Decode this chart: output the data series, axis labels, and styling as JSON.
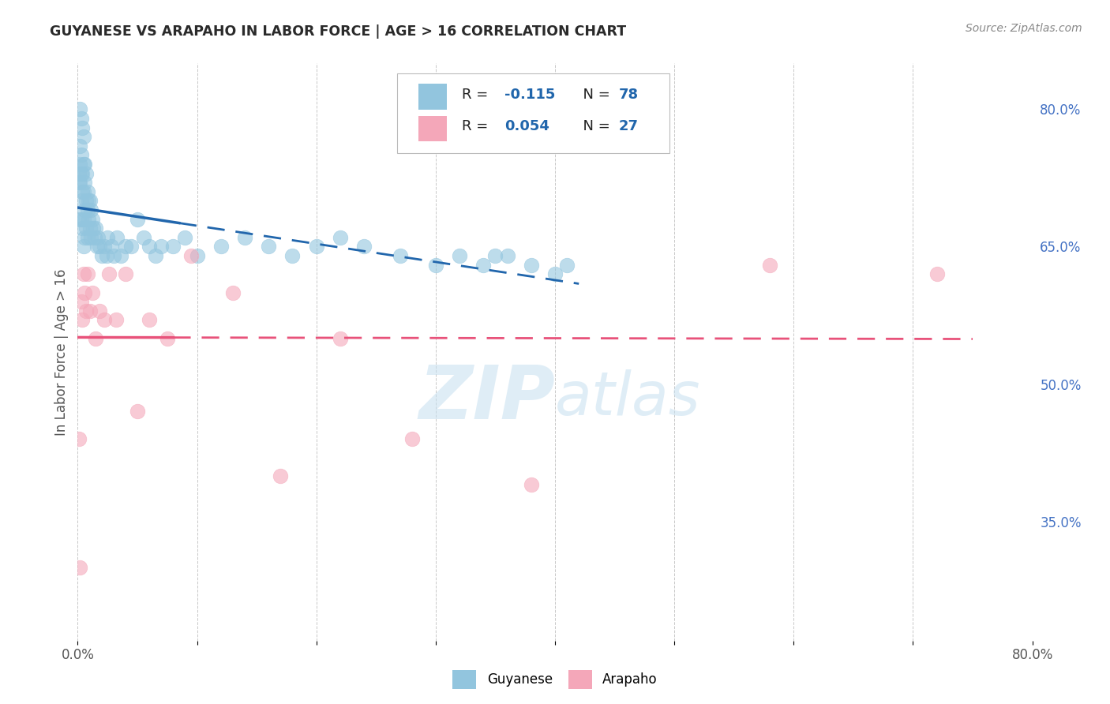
{
  "title": "GUYANESE VS ARAPAHO IN LABOR FORCE | AGE > 16 CORRELATION CHART",
  "source": "Source: ZipAtlas.com",
  "ylabel": "In Labor Force | Age > 16",
  "xlim": [
    0.0,
    0.8
  ],
  "ylim": [
    0.22,
    0.85
  ],
  "y_ticks_right": [
    0.35,
    0.5,
    0.65,
    0.8
  ],
  "y_tick_labels_right": [
    "35.0%",
    "50.0%",
    "65.0%",
    "80.0%"
  ],
  "blue_color": "#92C5DE",
  "pink_color": "#F4A7B9",
  "blue_line_color": "#2166AC",
  "pink_line_color": "#E8527A",
  "watermark_zip": "ZIP",
  "watermark_atlas": "atlas",
  "background_color": "#ffffff",
  "blue_scatter_x": [
    0.001,
    0.001,
    0.001,
    0.002,
    0.002,
    0.002,
    0.002,
    0.003,
    0.003,
    0.003,
    0.003,
    0.003,
    0.004,
    0.004,
    0.004,
    0.004,
    0.005,
    0.005,
    0.005,
    0.005,
    0.005,
    0.006,
    0.006,
    0.006,
    0.006,
    0.007,
    0.007,
    0.007,
    0.008,
    0.008,
    0.008,
    0.009,
    0.009,
    0.01,
    0.01,
    0.011,
    0.011,
    0.012,
    0.013,
    0.014,
    0.015,
    0.016,
    0.017,
    0.018,
    0.02,
    0.022,
    0.024,
    0.025,
    0.028,
    0.03,
    0.033,
    0.036,
    0.04,
    0.045,
    0.05,
    0.055,
    0.06,
    0.065,
    0.07,
    0.08,
    0.09,
    0.1,
    0.12,
    0.14,
    0.16,
    0.18,
    0.2,
    0.22,
    0.24,
    0.27,
    0.3,
    0.32,
    0.34,
    0.36,
    0.38,
    0.4,
    0.41,
    0.35
  ],
  "blue_scatter_y": [
    0.72,
    0.73,
    0.68,
    0.8,
    0.76,
    0.74,
    0.72,
    0.79,
    0.75,
    0.73,
    0.7,
    0.68,
    0.78,
    0.73,
    0.71,
    0.67,
    0.77,
    0.74,
    0.71,
    0.68,
    0.65,
    0.74,
    0.72,
    0.69,
    0.66,
    0.73,
    0.7,
    0.67,
    0.71,
    0.69,
    0.66,
    0.7,
    0.68,
    0.7,
    0.67,
    0.69,
    0.66,
    0.68,
    0.67,
    0.66,
    0.67,
    0.65,
    0.66,
    0.65,
    0.64,
    0.65,
    0.64,
    0.66,
    0.65,
    0.64,
    0.66,
    0.64,
    0.65,
    0.65,
    0.68,
    0.66,
    0.65,
    0.64,
    0.65,
    0.65,
    0.66,
    0.64,
    0.65,
    0.66,
    0.65,
    0.64,
    0.65,
    0.66,
    0.65,
    0.64,
    0.63,
    0.64,
    0.63,
    0.64,
    0.63,
    0.62,
    0.63,
    0.64
  ],
  "pink_scatter_x": [
    0.001,
    0.002,
    0.003,
    0.004,
    0.005,
    0.006,
    0.007,
    0.008,
    0.01,
    0.012,
    0.015,
    0.018,
    0.022,
    0.026,
    0.032,
    0.04,
    0.05,
    0.06,
    0.075,
    0.095,
    0.13,
    0.17,
    0.22,
    0.28,
    0.38,
    0.58,
    0.72
  ],
  "pink_scatter_y": [
    0.44,
    0.3,
    0.59,
    0.57,
    0.62,
    0.6,
    0.58,
    0.62,
    0.58,
    0.6,
    0.55,
    0.58,
    0.57,
    0.62,
    0.57,
    0.62,
    0.47,
    0.57,
    0.55,
    0.64,
    0.6,
    0.4,
    0.55,
    0.44,
    0.39,
    0.63,
    0.62
  ]
}
